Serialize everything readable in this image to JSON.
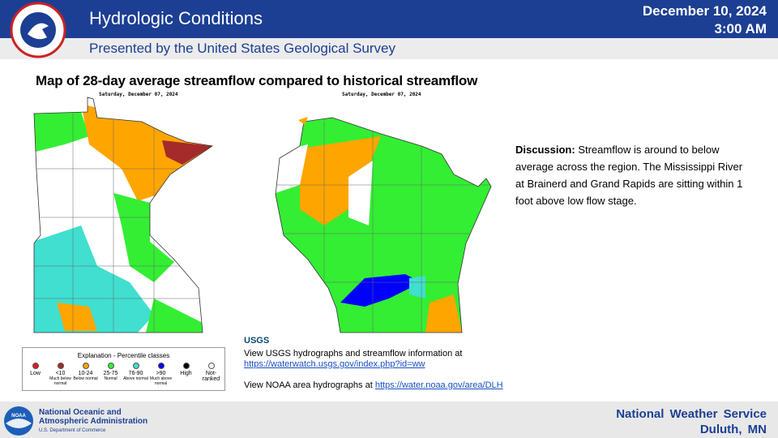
{
  "header": {
    "title": "Hydrologic Conditions",
    "subtitle": "Presented by the United States Geological Survey",
    "date": "December 10, 2024",
    "time": "3:00 AM"
  },
  "main": {
    "heading": "Map of 28-day average streamflow compared to historical streamflow",
    "maps": [
      {
        "date": "Saturday, December 07, 2024"
      },
      {
        "date": "Saturday, December 07, 2024"
      }
    ],
    "discussion": {
      "label": "Discussion:",
      "text": "Streamflow is around to below average across the region. The Mississippi River at Brainerd and Grand Rapids are sitting within 1 foot above low flow stage."
    }
  },
  "legend": {
    "title": "Explanation - Percentile classes",
    "classes": [
      {
        "range": "Low",
        "color": "#e41a1c"
      },
      {
        "range": "<10",
        "label": "Much below normal",
        "color": "#a52a2a"
      },
      {
        "range": "10-24",
        "label": "Below normal",
        "color": "#ffa500"
      },
      {
        "range": "25-75",
        "label": "Normal",
        "color": "#33ee33"
      },
      {
        "range": "76-90",
        "label": "Above normal",
        "color": "#40dfd0"
      },
      {
        "range": ">90",
        "label": "Much above normal",
        "color": "#0000ff"
      },
      {
        "range": "High",
        "color": "#000000"
      },
      {
        "range": "Not-ranked",
        "color": "#ffffff"
      }
    ]
  },
  "links": {
    "logo": "USGS",
    "items": [
      {
        "text": "View USGS hydrographs and streamflow information at",
        "url": "https://waterwatch.usgs.gov/index.php?id=ww"
      },
      {
        "text": "View NOAA  area hydrographs at",
        "url": "https://water.noaa.gov/area/DLH"
      }
    ]
  },
  "footer": {
    "noaa_logo": "NOAA",
    "noaa_line1": "National Oceanic and",
    "noaa_line2": "Atmospheric Administration",
    "dept": "U.S. Department of Commerce",
    "nws": "National Weather Service",
    "office": "Duluth, MN"
  }
}
